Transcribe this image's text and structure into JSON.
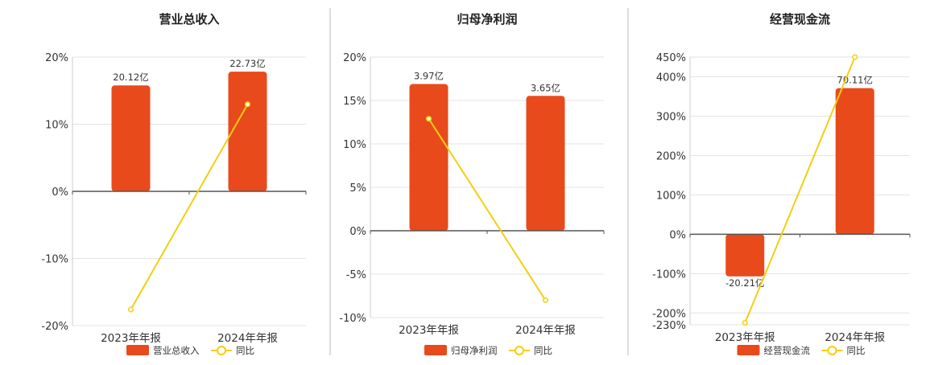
{
  "chart_data": [
    {
      "type": "bar",
      "title": "营业总收入",
      "categories": [
        "2023年年报",
        "2024年年报"
      ],
      "series": [
        {
          "name": "营业总收入",
          "type": "bar",
          "values": [
            20.12,
            22.73
          ],
          "labels": [
            "20.12亿",
            "22.73亿"
          ],
          "color": "#E84A1C"
        },
        {
          "name": "同比",
          "type": "line",
          "values": [
            -17.6,
            12.97
          ],
          "color": "#F2CF11"
        }
      ],
      "yaxis": {
        "min": -20,
        "max": 20,
        "ticks": [
          -20,
          -10,
          0,
          10,
          20
        ],
        "tick_labels": [
          "-20%",
          "-10%",
          "0%",
          "10%",
          "20%"
        ]
      },
      "bar_scale_max": 25.5,
      "legend": "bottom",
      "grid": true
    },
    {
      "type": "bar",
      "title": "归母净利润",
      "categories": [
        "2023年年报",
        "2024年年报"
      ],
      "series": [
        {
          "name": "归母净利润",
          "type": "bar",
          "values": [
            3.97,
            3.65
          ],
          "labels": [
            "3.97亿",
            "3.65亿"
          ],
          "color": "#E84A1C"
        },
        {
          "name": "同比",
          "type": "line",
          "values": [
            12.9,
            -8.0
          ],
          "color": "#F2CF11"
        }
      ],
      "yaxis": {
        "min": -10,
        "max": 20,
        "ticks": [
          -10,
          -5,
          0,
          5,
          10,
          15,
          20
        ],
        "tick_labels": [
          "-10%",
          "-5%",
          "0%",
          "5%",
          "10%",
          "15%",
          "20%"
        ]
      },
      "bar_scale_max": 4.7,
      "legend": "bottom",
      "grid": true
    },
    {
      "type": "bar",
      "title": "经营现金流",
      "categories": [
        "2023年年报",
        "2024年年报"
      ],
      "series": [
        {
          "name": "经营现金流",
          "type": "bar",
          "values": [
            -20.21,
            70.11
          ],
          "labels": [
            "-20.21亿",
            "70.11亿"
          ],
          "color": "#E84A1C"
        },
        {
          "name": "同比",
          "type": "line",
          "values": [
            -225,
            450
          ],
          "color": "#F2CF11"
        }
      ],
      "yaxis": {
        "min": -230,
        "max": 450,
        "ticks": [
          -230,
          -200,
          -100,
          0,
          100,
          200,
          300,
          400,
          450
        ],
        "tick_labels": [
          "-230%",
          "-200%",
          "-100%",
          "0%",
          "100%",
          "200%",
          "300%",
          "400%",
          "450%"
        ]
      },
      "bar_scale_max": 85.0,
      "legend": "bottom",
      "grid": true
    }
  ],
  "colors": {
    "bar": "#E84A1C",
    "line": "#F2CF11",
    "grid": "#E3E3E3",
    "axis": "#555555",
    "divider": "#BBBBBB"
  }
}
